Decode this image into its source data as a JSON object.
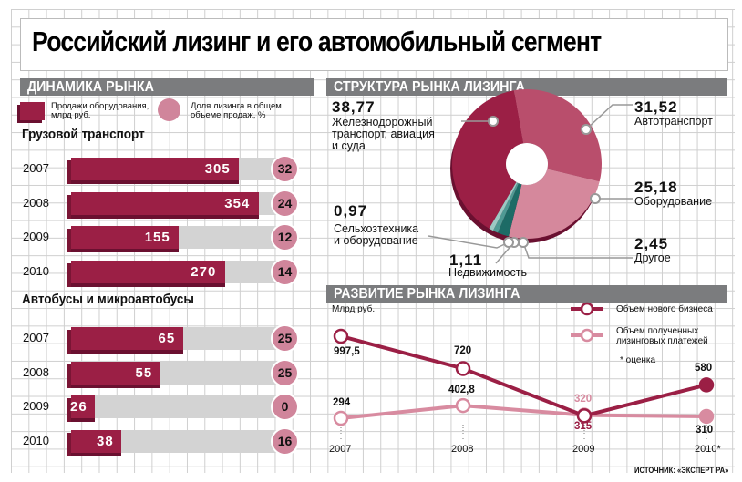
{
  "title": "Российский лизинг и его автомобильный сегмент",
  "colors": {
    "bar": "#9b1f45",
    "track": "#d3d3d3",
    "pct": "#d0859b",
    "header": "#7b7c7e",
    "line_new": "#9b1f45",
    "line_payments": "#d88ba0"
  },
  "left": {
    "header": "ДИНАМИКА РЫНКА",
    "legend": {
      "bar_label_1": "Продажи оборудования,",
      "bar_label_2": "млрд руб.",
      "circle_label_1": "Доля лизинга в общем",
      "circle_label_2": "объеме продаж, %"
    },
    "trucks": {
      "title": "Грузовой транспорт",
      "rows": [
        {
          "year": "2007",
          "value": 305,
          "pct": 32
        },
        {
          "year": "2008",
          "value": 354,
          "pct": 24
        },
        {
          "year": "2009",
          "value": 155,
          "pct": 12
        },
        {
          "year": "2010",
          "value": 270,
          "pct": 14
        }
      ]
    },
    "buses": {
      "title": "Автобусы и микроавтобусы",
      "rows": [
        {
          "year": "2007",
          "value": 65,
          "pct": 25
        },
        {
          "year": "2008",
          "value": 55,
          "pct": 25
        },
        {
          "year": "2009",
          "value": 26,
          "pct": 0
        },
        {
          "year": "2010",
          "value": 38,
          "pct": 16
        }
      ]
    }
  },
  "chart_data": [
    {
      "type": "bar",
      "title": "Грузовой транспорт",
      "categories": [
        "2007",
        "2008",
        "2009",
        "2010"
      ],
      "series": [
        {
          "name": "Продажи оборудования, млрд руб.",
          "values": [
            305,
            354,
            155,
            270
          ]
        },
        {
          "name": "Доля лизинга в общем объеме продаж, %",
          "values": [
            32,
            24,
            12,
            14
          ]
        }
      ]
    },
    {
      "type": "bar",
      "title": "Автобусы и микроавтобусы",
      "categories": [
        "2007",
        "2008",
        "2009",
        "2010"
      ],
      "series": [
        {
          "name": "Продажи оборудования, млрд руб.",
          "values": [
            65,
            55,
            26,
            38
          ]
        },
        {
          "name": "Доля лизинга в общем объеме продаж, %",
          "values": [
            25,
            25,
            0,
            16
          ]
        }
      ]
    },
    {
      "type": "pie",
      "title": "СТРУКТУРА РЫНКА ЛИЗИНГА",
      "slices": [
        {
          "value": "31,52",
          "num": 31.52,
          "label": "Автотранспорт",
          "color": "#b94e6c"
        },
        {
          "value": "25,18",
          "num": 25.18,
          "label": "Оборудование",
          "color": "#d5889c"
        },
        {
          "value": "2,45",
          "num": 2.45,
          "label": "Другое",
          "color": "#1d6b66"
        },
        {
          "value": "1,11",
          "num": 1.11,
          "label": "Недвижимость",
          "color": "#4f9a94"
        },
        {
          "value": "0,97",
          "num": 0.97,
          "label": "Сельхозтехника и оборудование",
          "color": "#9cc9c4"
        },
        {
          "value": "38,77",
          "num": 38.77,
          "label": "Железнодорожный транспорт, авиация и суда",
          "color": "#9b1f45"
        }
      ]
    },
    {
      "type": "line",
      "title": "РАЗВИТИЕ РЫНКА ЛИЗИНГА",
      "ylabel": "Млрд руб.",
      "x": [
        "2007",
        "2008",
        "2009",
        "2010*"
      ],
      "series": [
        {
          "name": "Объем нового бизнеса",
          "values": [
            997.5,
            720,
            315,
            580
          ],
          "labels": [
            "997,5",
            "720",
            "315",
            "580"
          ]
        },
        {
          "name": "Объем полученных лизинговых платежей",
          "values": [
            294,
            402.8,
            320,
            310
          ],
          "labels": [
            "294",
            "402,8",
            "320",
            "310"
          ]
        }
      ],
      "note": "* оценка"
    }
  ],
  "pie": {
    "header": "СТРУКТУРА РЫНКА ЛИЗИНГА",
    "rail_1": "Железнодорожный",
    "rail_2": "транспорт, авиация",
    "rail_3": "и суда"
  },
  "line": {
    "header": "РАЗВИТИЕ РЫНКА ЛИЗИНГА",
    "unit": "Млрд руб.",
    "legend_new": "Объем нового бизнеса",
    "legend_pay_1": "Объем полученных",
    "legend_pay_2": "лизинговых платежей",
    "note": "* оценка",
    "source": "ИСТОЧНИК: «ЭКСПЕРТ РА»"
  }
}
